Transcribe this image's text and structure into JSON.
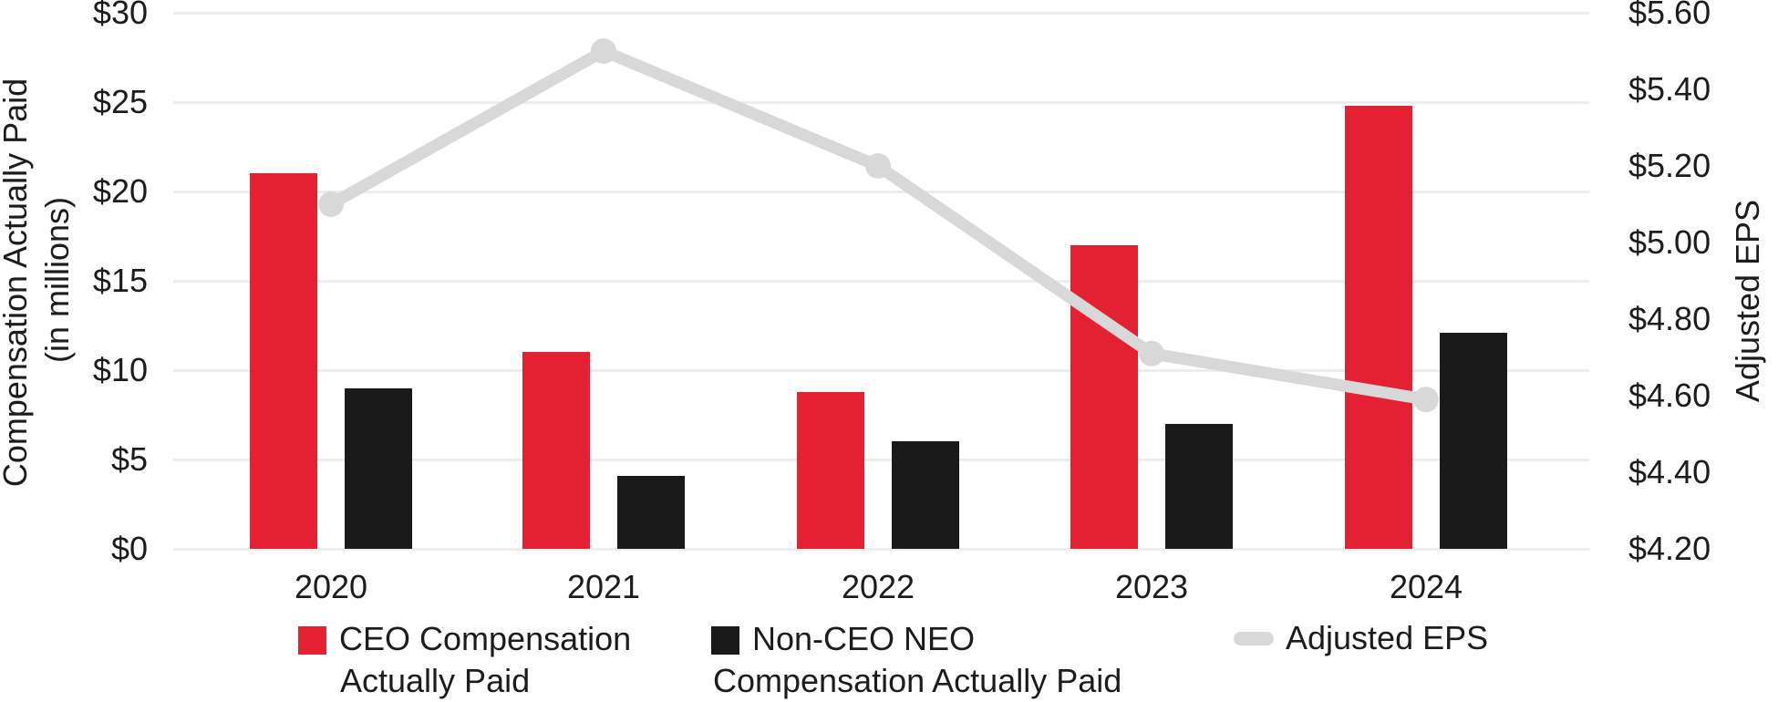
{
  "chart_data": {
    "type": "combo-bar-line",
    "categories": [
      "2020",
      "2021",
      "2022",
      "2023",
      "2024"
    ],
    "bar_series": [
      {
        "name": "CEO Compensation Actually Paid",
        "color": "#e42033",
        "values": [
          21.0,
          11.0,
          8.8,
          17.0,
          24.8
        ]
      },
      {
        "name": "Non-CEO NEO Compensation Actually Paid",
        "color": "#1a1a1a",
        "values": [
          9.0,
          4.1,
          6.0,
          7.0,
          12.1
        ]
      }
    ],
    "line_series": [
      {
        "name": "Adjusted EPS",
        "color": "#d8d8d8",
        "values": [
          5.1,
          5.5,
          5.2,
          4.71,
          4.59
        ]
      }
    ],
    "left_axis": {
      "title_line1": "Compensation Actually Paid",
      "title_line2": "(in millions)",
      "ticks": [
        "$30",
        "$25",
        "$20",
        "$15",
        "$10",
        "$5",
        "$0"
      ],
      "min": 0,
      "max": 30,
      "step": 5
    },
    "right_axis": {
      "title": "Adjusted EPS",
      "ticks": [
        "$5.60",
        "$5.40",
        "$5.20",
        "$5.00",
        "$4.80",
        "$4.60",
        "$4.40",
        "$4.20"
      ],
      "min": 4.2,
      "max": 5.6,
      "step": 0.2
    },
    "legend": [
      {
        "swatch": "square",
        "color": "#e42033",
        "label_lines": [
          "CEO Compensation",
          "Actually Paid"
        ]
      },
      {
        "swatch": "square",
        "color": "#1a1a1a",
        "label_lines": [
          "Non-CEO NEO",
          "Compensation Actually Paid"
        ]
      },
      {
        "swatch": "pill",
        "color": "#d8d8d8",
        "label_lines": [
          "Adjusted EPS"
        ]
      }
    ],
    "grid": true,
    "legend_position": "bottom",
    "colors": {
      "ceo_bar": "#e42033",
      "neo_bar": "#1a1a1a",
      "eps_line": "#d8d8d8",
      "gridline": "#ededed",
      "text": "#1c1c1c"
    }
  }
}
